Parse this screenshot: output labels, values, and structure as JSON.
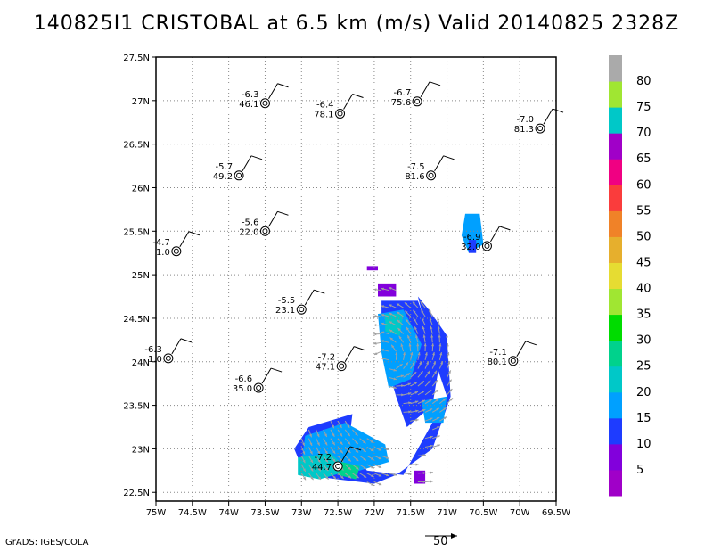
{
  "title": "140825I1 CRISTOBAL at 6.5 km (m/s) Valid 20140825 2328Z",
  "credit": "GrADS: IGES/COLA",
  "vector_scale_label": "50",
  "chart_data": {
    "type": "heatmap",
    "title": "140825I1 CRISTOBAL at 6.5 km (m/s) Valid 20140825 2328Z",
    "xlim": [
      -75.0,
      -69.5
    ],
    "ylim": [
      22.4,
      27.5
    ],
    "grid": true,
    "x_ticks": [
      "75W",
      "74.5W",
      "74W",
      "73.5W",
      "73W",
      "72.5W",
      "72W",
      "71.5W",
      "71W",
      "70.5W",
      "70W",
      "69.5W"
    ],
    "x_tick_values": [
      -75.0,
      -74.5,
      -74.0,
      -73.5,
      -73.0,
      -72.5,
      -72.0,
      -71.5,
      -71.0,
      -70.5,
      -70.0,
      -69.5
    ],
    "y_ticks": [
      "22.5N",
      "23N",
      "23.5N",
      "24N",
      "24.5N",
      "25N",
      "25.5N",
      "26N",
      "26.5N",
      "27N",
      "27.5N"
    ],
    "y_tick_values": [
      22.5,
      23.0,
      23.5,
      24.0,
      24.5,
      25.0,
      25.5,
      26.0,
      26.5,
      27.0,
      27.5
    ],
    "colorbar": {
      "labels": [
        "5",
        "10",
        "15",
        "20",
        "25",
        "30",
        "35",
        "40",
        "45",
        "50",
        "55",
        "60",
        "65",
        "70",
        "75",
        "80"
      ],
      "colors": [
        "#a000c8",
        "#8200dc",
        "#1e3cff",
        "#00a0ff",
        "#00c8c8",
        "#00d28c",
        "#00dc00",
        "#a0e632",
        "#e6dc32",
        "#e6af2d",
        "#f08228",
        "#fa3c3c",
        "#f00082",
        "#a000c8",
        "#00c8c8",
        "#a0e632",
        "#aaaaaa"
      ]
    },
    "stations": [
      {
        "lon": -73.5,
        "lat": 26.97,
        "temp": "-6.3",
        "speed": "46.1"
      },
      {
        "lon": -72.47,
        "lat": 26.85,
        "temp": "-6.4",
        "speed": "78.1"
      },
      {
        "lon": -71.41,
        "lat": 26.99,
        "temp": "-6.7",
        "speed": "75.6"
      },
      {
        "lon": -69.72,
        "lat": 26.68,
        "temp": "-7.0",
        "speed": "81.3"
      },
      {
        "lon": -73.86,
        "lat": 26.14,
        "temp": "-5.7",
        "speed": "49.2"
      },
      {
        "lon": -71.22,
        "lat": 26.14,
        "temp": "-7.5",
        "speed": "81.6"
      },
      {
        "lon": -74.72,
        "lat": 25.27,
        "temp": "-4.7",
        "speed": "1.0"
      },
      {
        "lon": -73.5,
        "lat": 25.5,
        "temp": "-5.6",
        "speed": "22.0"
      },
      {
        "lon": -70.45,
        "lat": 25.33,
        "temp": "-6.9",
        "speed": "32.0"
      },
      {
        "lon": -73.0,
        "lat": 24.6,
        "temp": "-5.5",
        "speed": "23.1"
      },
      {
        "lon": -74.83,
        "lat": 24.04,
        "temp": "-6.3",
        "speed": "1.0"
      },
      {
        "lon": -72.45,
        "lat": 23.95,
        "temp": "-7.2",
        "speed": "47.1"
      },
      {
        "lon": -70.09,
        "lat": 24.01,
        "temp": "-7.1",
        "speed": "80.1"
      },
      {
        "lon": -73.59,
        "lat": 23.7,
        "temp": "-6.6",
        "speed": "35.0"
      },
      {
        "lon": -72.5,
        "lat": 22.8,
        "temp": "-7.2",
        "speed": "44.7"
      }
    ],
    "precip_regions": [
      {
        "color": "#1e3cff",
        "points": [
          [
            -71.4,
            24.75
          ],
          [
            -71.2,
            24.1
          ],
          [
            -71.0,
            23.6
          ],
          [
            -71.4,
            23.0
          ],
          [
            -71.6,
            22.7
          ],
          [
            -72.1,
            22.75
          ],
          [
            -72.35,
            23.05
          ],
          [
            -72.3,
            23.4
          ],
          [
            -72.5,
            23.35
          ],
          [
            -72.9,
            23.25
          ],
          [
            -73.1,
            23.0
          ],
          [
            -72.95,
            22.7
          ],
          [
            -72.5,
            22.65
          ],
          [
            -72.0,
            22.6
          ],
          [
            -71.7,
            22.7
          ],
          [
            -71.2,
            23.0
          ],
          [
            -70.95,
            23.6
          ],
          [
            -71.0,
            24.3
          ],
          [
            -71.25,
            24.6
          ]
        ]
      },
      {
        "color": "#1e3cff",
        "points": [
          [
            -71.9,
            24.7
          ],
          [
            -71.4,
            24.7
          ],
          [
            -71.1,
            24.0
          ],
          [
            -71.2,
            23.5
          ],
          [
            -71.55,
            23.25
          ],
          [
            -71.7,
            23.6
          ],
          [
            -71.9,
            24.2
          ]
        ]
      },
      {
        "color": "#00a0ff",
        "points": [
          [
            -71.95,
            24.55
          ],
          [
            -71.6,
            24.6
          ],
          [
            -71.35,
            24.2
          ],
          [
            -71.5,
            23.8
          ],
          [
            -71.8,
            23.7
          ],
          [
            -71.9,
            24.1
          ]
        ]
      },
      {
        "color": "#00a0ff",
        "points": [
          [
            -72.95,
            23.15
          ],
          [
            -72.4,
            23.3
          ],
          [
            -71.85,
            23.05
          ],
          [
            -71.8,
            22.85
          ],
          [
            -72.2,
            22.75
          ],
          [
            -72.7,
            22.7
          ],
          [
            -73.0,
            22.85
          ]
        ]
      },
      {
        "color": "#00c8c8",
        "points": [
          [
            -73.05,
            22.9
          ],
          [
            -72.6,
            22.95
          ],
          [
            -72.35,
            22.75
          ],
          [
            -72.75,
            22.65
          ],
          [
            -73.05,
            22.7
          ]
        ]
      },
      {
        "color": "#00d28c",
        "points": [
          [
            -72.45,
            22.85
          ],
          [
            -72.2,
            22.8
          ],
          [
            -72.25,
            22.65
          ],
          [
            -72.5,
            22.7
          ]
        ]
      },
      {
        "color": "#00c8c8",
        "points": [
          [
            -71.85,
            24.55
          ],
          [
            -71.6,
            24.55
          ],
          [
            -71.65,
            24.3
          ],
          [
            -71.85,
            24.35
          ]
        ]
      },
      {
        "color": "#00a0ff",
        "points": [
          [
            -71.35,
            23.55
          ],
          [
            -71.0,
            23.6
          ],
          [
            -71.05,
            23.3
          ],
          [
            -71.3,
            23.3
          ]
        ]
      },
      {
        "color": "#8200dc",
        "points": [
          [
            -71.95,
            24.9
          ],
          [
            -71.7,
            24.9
          ],
          [
            -71.7,
            24.75
          ],
          [
            -71.95,
            24.75
          ]
        ]
      },
      {
        "color": "#8200dc",
        "points": [
          [
            -71.45,
            22.75
          ],
          [
            -71.3,
            22.75
          ],
          [
            -71.3,
            22.6
          ],
          [
            -71.45,
            22.6
          ]
        ]
      },
      {
        "color": "#00a0ff",
        "points": [
          [
            -70.75,
            25.7
          ],
          [
            -70.55,
            25.7
          ],
          [
            -70.5,
            25.35
          ],
          [
            -70.7,
            25.25
          ],
          [
            -70.8,
            25.45
          ]
        ]
      },
      {
        "color": "#1e3cff",
        "points": [
          [
            -70.7,
            25.4
          ],
          [
            -70.6,
            25.4
          ],
          [
            -70.6,
            25.25
          ],
          [
            -70.7,
            25.25
          ]
        ]
      },
      {
        "color": "#8200dc",
        "points": [
          [
            -72.1,
            25.1
          ],
          [
            -71.95,
            25.1
          ],
          [
            -71.95,
            25.05
          ],
          [
            -72.1,
            25.05
          ]
        ]
      }
    ]
  }
}
